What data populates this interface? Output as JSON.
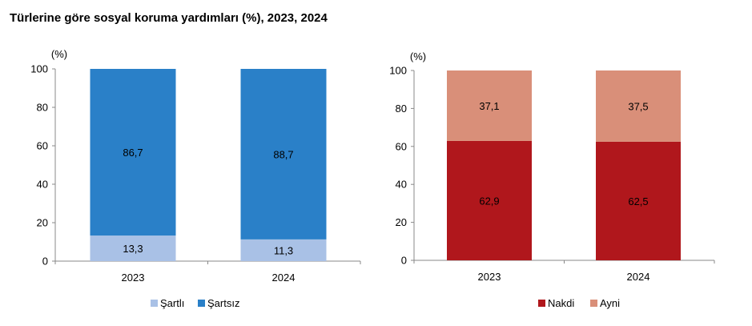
{
  "title": "Türlerine göre sosyal koruma yardımları (%), 2023, 2024",
  "chart_data": [
    {
      "type": "stacked-bar",
      "unit_label": "(%)",
      "ylim": [
        0,
        100
      ],
      "yticks": [
        0,
        20,
        40,
        60,
        80,
        100
      ],
      "categories": [
        "2023",
        "2024"
      ],
      "series": [
        {
          "name": "Şartlı",
          "values": [
            13.3,
            11.3
          ],
          "labels": [
            "13,3",
            "11,3"
          ],
          "color": "#a9c1e6"
        },
        {
          "name": "Şartsız",
          "values": [
            86.7,
            88.7
          ],
          "labels": [
            "86,7",
            "88,7"
          ],
          "color": "#2a80c8"
        }
      ]
    },
    {
      "type": "stacked-bar",
      "unit_label": "(%)",
      "ylim": [
        0,
        100
      ],
      "yticks": [
        0,
        20,
        40,
        60,
        80,
        100
      ],
      "categories": [
        "2023",
        "2024"
      ],
      "series": [
        {
          "name": "Nakdi",
          "values": [
            62.9,
            62.5
          ],
          "labels": [
            "62,9",
            "62,5"
          ],
          "color": "#b0171c"
        },
        {
          "name": "Ayni",
          "values": [
            37.1,
            37.5
          ],
          "labels": [
            "37,1",
            "37,5"
          ],
          "color": "#d98f79"
        }
      ]
    }
  ]
}
